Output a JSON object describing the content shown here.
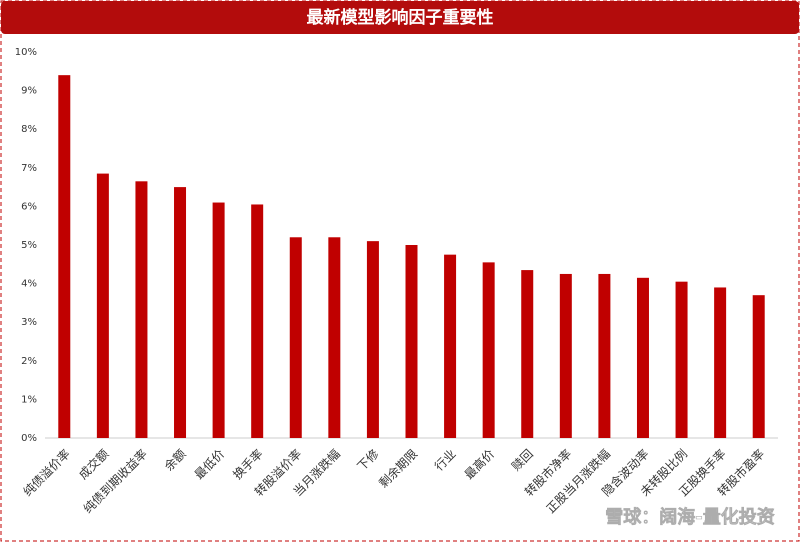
{
  "chart_data": {
    "type": "bar",
    "title": "最新模型影响因子重要性",
    "categories": [
      "纯债溢价率",
      "成交额",
      "纯债到期收益率",
      "余额",
      "最低价",
      "换手率",
      "转股溢价率",
      "当月涨跌幅",
      "下修",
      "剩余期限",
      "行业",
      "最高价",
      "赎回",
      "转股市净率",
      "正股当月涨跌幅",
      "隐含波动率",
      "未转股比例",
      "正股换手率",
      "转股市盈率"
    ],
    "values": [
      9.4,
      6.85,
      6.65,
      6.5,
      6.1,
      6.05,
      5.2,
      5.2,
      5.1,
      5.0,
      4.75,
      4.55,
      4.35,
      4.25,
      4.25,
      4.15,
      4.05,
      3.9,
      3.7
    ],
    "color": "#c00000",
    "ylim": [
      0,
      10
    ],
    "yticks": [
      {
        "value": 0,
        "label": "0%"
      },
      {
        "value": 1,
        "label": "1%"
      },
      {
        "value": 2,
        "label": "2%"
      },
      {
        "value": 3,
        "label": "3%"
      },
      {
        "value": 4,
        "label": "4%"
      },
      {
        "value": 5,
        "label": "5%"
      },
      {
        "value": 6,
        "label": "6%"
      },
      {
        "value": 7,
        "label": "7%"
      },
      {
        "value": 8,
        "label": "8%"
      },
      {
        "value": 9,
        "label": "9%"
      },
      {
        "value": 10,
        "label": "10%"
      }
    ],
    "grid": false,
    "watermark": "雪球：阔海-量化投资"
  }
}
